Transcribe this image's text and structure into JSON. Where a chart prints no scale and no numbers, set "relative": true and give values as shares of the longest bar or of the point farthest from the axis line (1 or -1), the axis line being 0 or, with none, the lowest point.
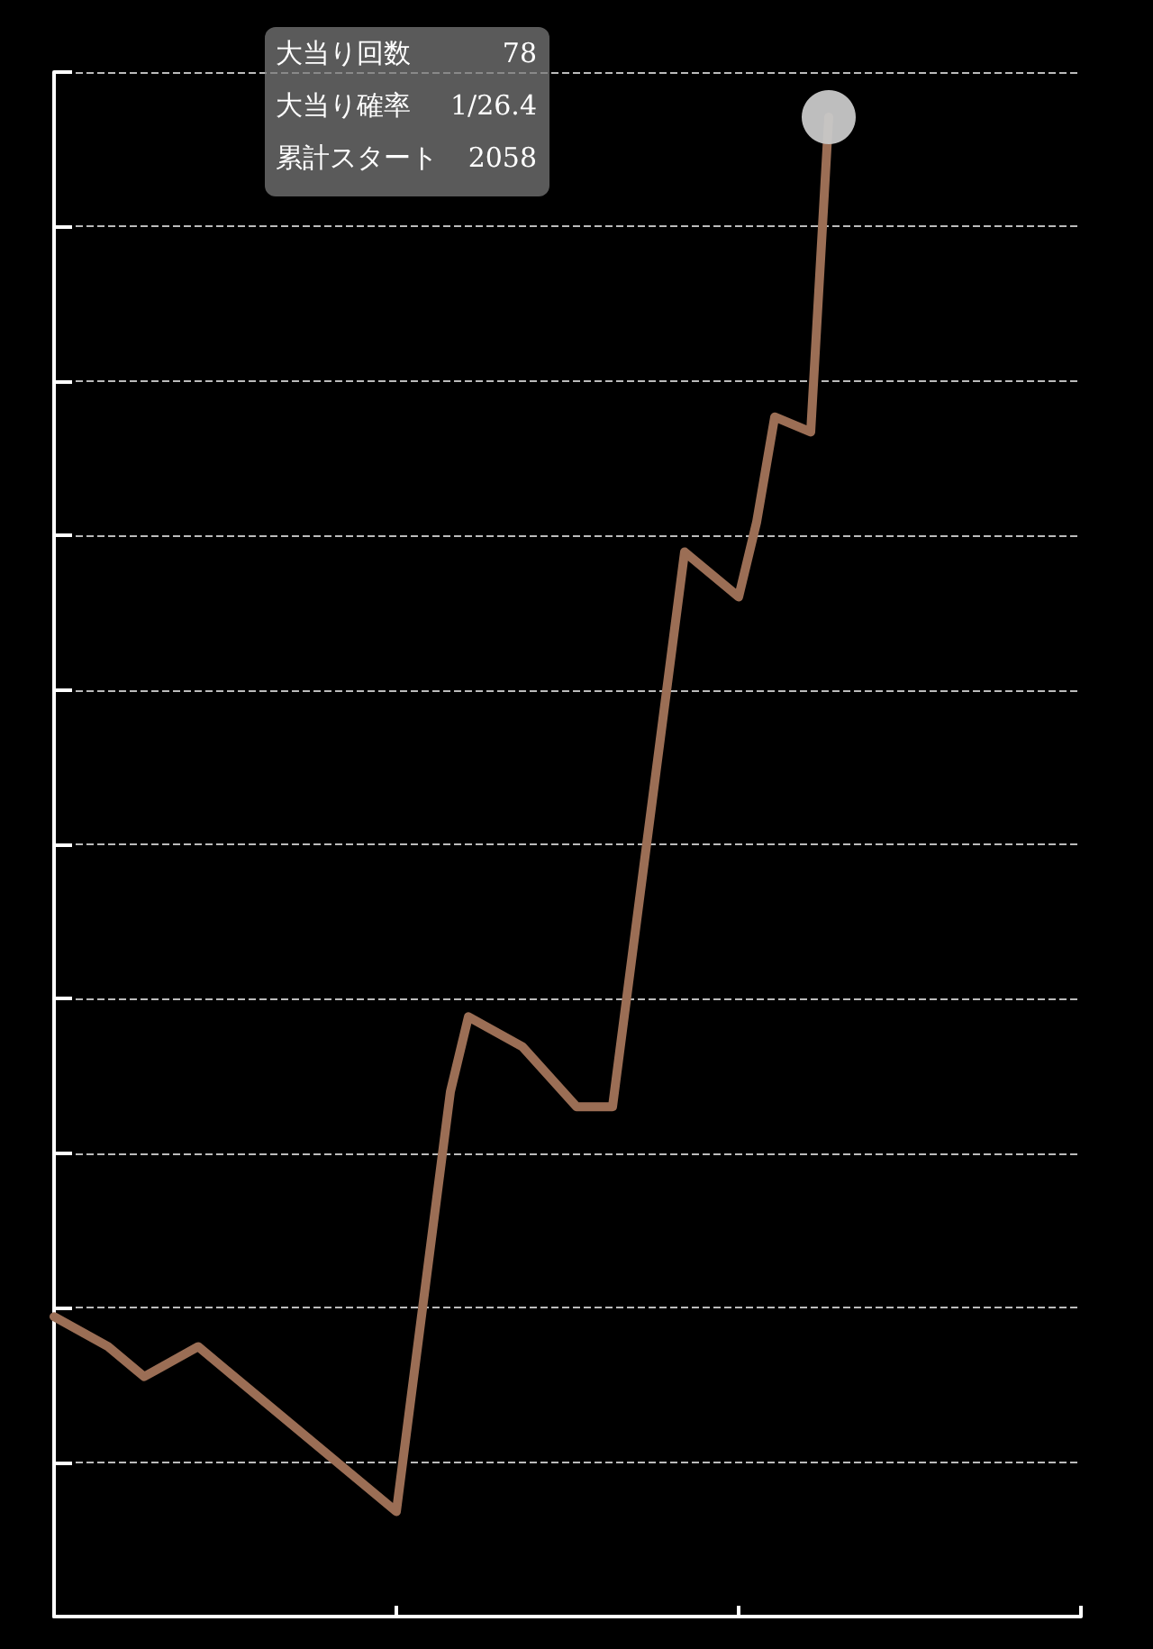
{
  "chart_data": {
    "type": "line",
    "relative": true,
    "categories": [
      null,
      null,
      null,
      null,
      null,
      null,
      null,
      null,
      null,
      null,
      null,
      null,
      null,
      null,
      null,
      null,
      null,
      null,
      null,
      null,
      null,
      null,
      null,
      null,
      null,
      null,
      null,
      null,
      null,
      null,
      null,
      null,
      null,
      null,
      null,
      null,
      null,
      null,
      null,
      null,
      null,
      null,
      null,
      null,
      null,
      null,
      null,
      null,
      null,
      null,
      null,
      null,
      null,
      null,
      null,
      null,
      null,
      null
    ],
    "series": [
      {
        "color": "#9b6e55",
        "values": [
          0.2,
          null,
          null,
          0.18,
          null,
          0.16,
          null,
          null,
          0.18,
          null,
          null,
          null,
          null,
          null,
          null,
          null,
          null,
          null,
          null,
          0.07,
          null,
          null,
          0.35,
          0.4,
          null,
          null,
          0.38,
          null,
          null,
          0.34,
          null,
          0.34,
          null,
          null,
          null,
          0.71,
          null,
          null,
          0.68,
          0.73,
          0.8,
          null,
          0.79,
          1,
          null,
          null,
          null,
          null,
          null,
          null,
          null,
          null,
          null,
          null,
          null,
          null,
          null,
          null
        ]
      }
    ],
    "annotations": [
      "大当り回数 78",
      "大当り確率 1/26.4",
      "累計スタート 2058"
    ],
    "grid": "y",
    "marker": "none",
    "line_style": "solid"
  }
}
